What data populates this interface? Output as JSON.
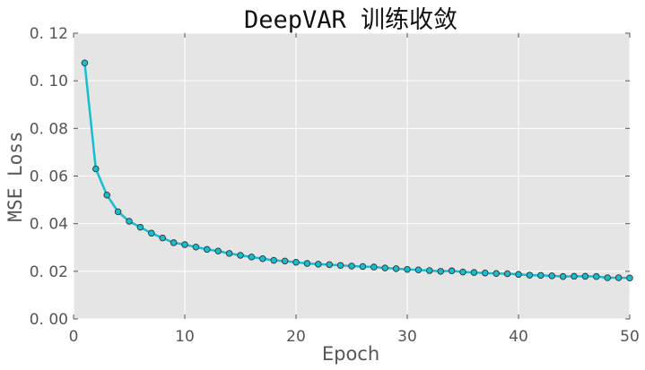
{
  "chart_data": {
    "type": "line",
    "title": "DeepVAR 训练收敛",
    "xlabel": "Epoch",
    "ylabel": "MSE Loss",
    "xlim": [
      0,
      50
    ],
    "ylim": [
      0.0,
      0.12
    ],
    "xticks": [
      0,
      10,
      20,
      30,
      40,
      50
    ],
    "yticks": [
      0.0,
      0.02,
      0.04,
      0.06,
      0.08,
      0.1,
      0.12
    ],
    "ytick_labels": [
      "0. 00",
      "0. 02",
      "0. 04",
      "0. 06",
      "0. 08",
      "0. 10",
      "0. 12"
    ],
    "grid": true,
    "background": "#e5e5e5",
    "series": [
      {
        "color": "#17becf",
        "marker": "circle",
        "x": [
          1,
          2,
          3,
          4,
          5,
          6,
          7,
          8,
          9,
          10,
          11,
          12,
          13,
          14,
          15,
          16,
          17,
          18,
          19,
          20,
          21,
          22,
          23,
          24,
          25,
          26,
          27,
          28,
          29,
          30,
          31,
          32,
          33,
          34,
          35,
          36,
          37,
          38,
          39,
          40,
          41,
          42,
          43,
          44,
          45,
          46,
          47,
          48,
          49,
          50
        ],
        "y": [
          0.1075,
          0.063,
          0.052,
          0.045,
          0.041,
          0.0385,
          0.036,
          0.034,
          0.032,
          0.0312,
          0.0302,
          0.0292,
          0.0285,
          0.0275,
          0.0267,
          0.026,
          0.0253,
          0.0246,
          0.0243,
          0.0238,
          0.0233,
          0.023,
          0.0228,
          0.0225,
          0.0222,
          0.022,
          0.0218,
          0.0214,
          0.0211,
          0.0208,
          0.0206,
          0.0203,
          0.02,
          0.0202,
          0.0197,
          0.0195,
          0.0193,
          0.0191,
          0.019,
          0.0187,
          0.0184,
          0.0183,
          0.0181,
          0.0178,
          0.0179,
          0.0179,
          0.0178,
          0.0173,
          0.0173,
          0.0172
        ]
      }
    ]
  }
}
